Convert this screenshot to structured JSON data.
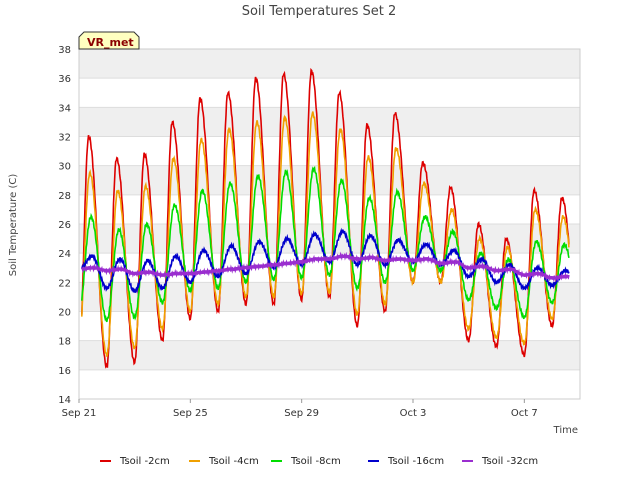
{
  "chart_data": {
    "type": "line",
    "title": "Soil Temperatures Set 2",
    "xlabel": "Time",
    "ylabel": "Soil Temperature (C)",
    "site_tag": "VR_met",
    "ylim": [
      14,
      38
    ],
    "yticks": [
      14,
      16,
      18,
      20,
      22,
      24,
      26,
      28,
      30,
      32,
      34,
      36,
      38
    ],
    "xlim": [
      "Sep 21",
      "Oct 9"
    ],
    "xticks": [
      "Sep 21",
      "Sep 25",
      "Sep 29",
      "Oct 3",
      "Oct 7"
    ],
    "x_start": "2023-09-21",
    "grid": true,
    "legend_position": "bottom",
    "series": [
      {
        "name": "Tsoil -2cm",
        "color": "#dd0000",
        "min": [
          17.0,
          16.2,
          16.5,
          18.0,
          19.5,
          20.0,
          20.5,
          20.5,
          20.8,
          21.0,
          19.0,
          20.0,
          22.0,
          22.0,
          18.0,
          17.6,
          17.0,
          19.0,
          18.0
        ],
        "max": [
          32.0,
          30.5,
          30.8,
          33.0,
          34.6,
          35.0,
          36.0,
          36.3,
          36.5,
          35.0,
          32.8,
          33.6,
          30.2,
          28.5,
          26.0,
          25.0,
          28.3,
          27.8
        ]
      },
      {
        "name": "Tsoil -4cm",
        "color": "#f0a000",
        "min": [
          18.0,
          17.0,
          17.5,
          18.8,
          20.0,
          20.5,
          21.0,
          21.0,
          21.2,
          21.3,
          19.8,
          20.5,
          22.0,
          22.0,
          18.8,
          18.2,
          17.8,
          19.5,
          19.0
        ],
        "max": [
          29.5,
          28.3,
          28.6,
          30.5,
          31.8,
          32.5,
          33.0,
          33.3,
          33.6,
          32.5,
          30.6,
          31.2,
          28.8,
          27.0,
          25.0,
          24.4,
          27.0,
          26.5
        ]
      },
      {
        "name": "Tsoil -8cm",
        "color": "#00dd00",
        "min": [
          20.0,
          19.4,
          19.6,
          20.6,
          21.4,
          21.6,
          22.0,
          22.2,
          22.3,
          22.5,
          21.6,
          22.0,
          22.8,
          22.8,
          20.8,
          20.2,
          19.6,
          20.6,
          20.5
        ],
        "max": [
          26.5,
          25.6,
          26.0,
          27.3,
          28.3,
          28.8,
          29.3,
          29.6,
          29.8,
          29.0,
          27.8,
          28.2,
          26.5,
          25.5,
          24.0,
          23.6,
          24.8,
          24.6
        ]
      },
      {
        "name": "Tsoil -16cm",
        "color": "#0000cc",
        "min": [
          22.8,
          21.6,
          21.4,
          21.6,
          22.0,
          22.4,
          22.6,
          23.0,
          23.2,
          23.4,
          23.2,
          23.2,
          23.4,
          23.2,
          22.4,
          22.0,
          21.6,
          21.8,
          22.2
        ],
        "max": [
          23.8,
          23.6,
          23.5,
          23.8,
          24.2,
          24.5,
          24.8,
          25.0,
          25.3,
          25.5,
          25.2,
          24.9,
          24.6,
          24.2,
          23.6,
          23.2,
          23.0,
          22.8
        ]
      },
      {
        "name": "Tsoil -32cm",
        "color": "#9a2ecf",
        "min": [
          22.9,
          22.8,
          22.6,
          22.5,
          22.6,
          22.8,
          23.0,
          23.2,
          23.4,
          23.6,
          23.6,
          23.5,
          23.5,
          23.3,
          23.0,
          22.8,
          22.5,
          22.3,
          22.2
        ],
        "max": [
          23.0,
          22.9,
          22.7,
          22.6,
          22.7,
          22.9,
          23.1,
          23.3,
          23.6,
          23.8,
          23.7,
          23.6,
          23.6,
          23.4,
          23.1,
          22.9,
          22.6,
          22.4
        ]
      }
    ]
  }
}
